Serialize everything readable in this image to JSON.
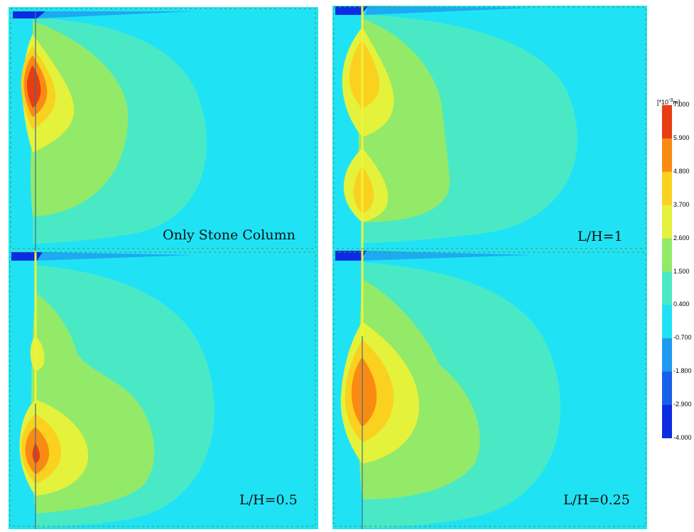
{
  "panels": [
    {
      "id": "only-stone-column",
      "label": "Only Stone Column"
    },
    {
      "id": "l-h-1",
      "label": "L/H=1"
    },
    {
      "id": "l-h-0-5",
      "label": "L/H=0.5"
    },
    {
      "id": "l-h-0-25",
      "label": "L/H=0.25"
    }
  ],
  "legend": {
    "unit_prefix": "[*10",
    "unit_exp": "-3",
    "unit_suffix": "m]",
    "ticks": [
      "7.000",
      "5.900",
      "4.800",
      "3.700",
      "2.600",
      "1.500",
      "0.400",
      "-0.700",
      "-1.800",
      "-2.900",
      "-4.000"
    ],
    "colors": [
      "#e83d12",
      "#f98b12",
      "#fbd11f",
      "#e4f23c",
      "#93ea68",
      "#4ae9c6",
      "#1fe3f5",
      "#1e9af0",
      "#1760ea",
      "#0d2ce2"
    ]
  }
}
